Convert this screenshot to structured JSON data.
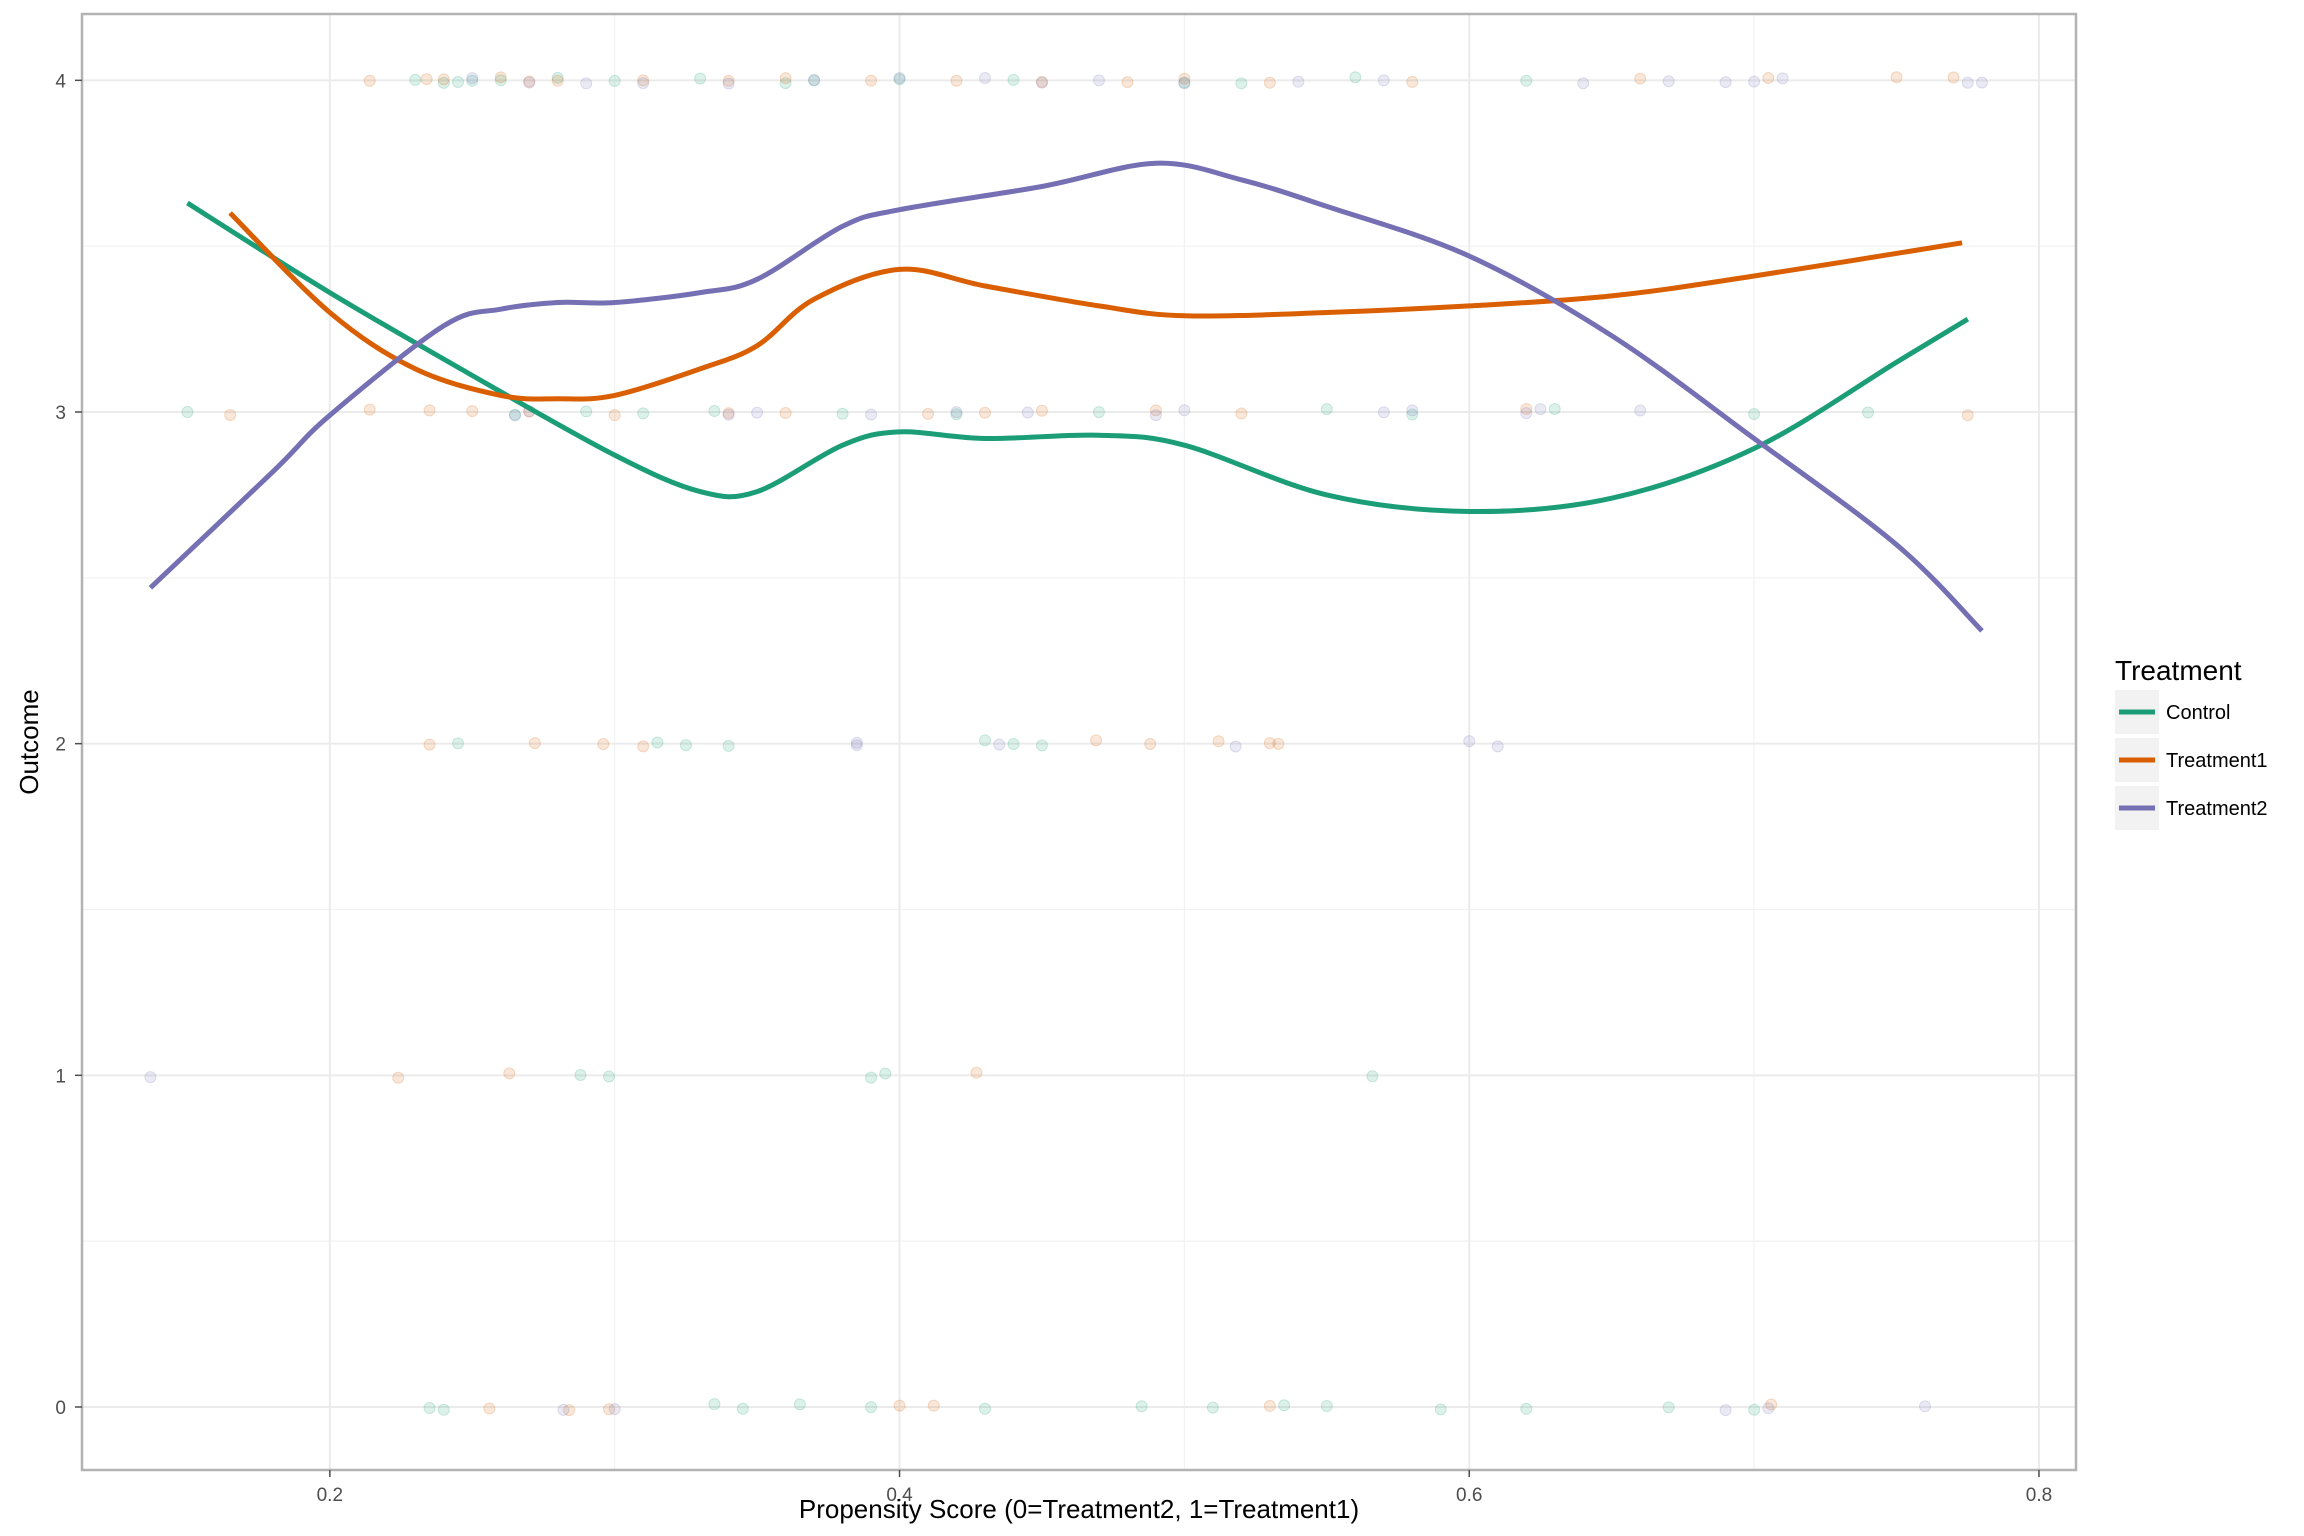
{
  "chart_data": {
    "type": "scatter",
    "xlabel": "Propensity Score (0=Treatment2, 1=Treatment1)",
    "ylabel": "Outcome",
    "xlim": [
      0.113,
      0.813
    ],
    "ylim": [
      -0.19,
      4.2
    ],
    "x_ticks": [
      "0.2",
      "0.4",
      "0.6",
      "0.8"
    ],
    "y_ticks": [
      "0",
      "1",
      "2",
      "3",
      "4"
    ],
    "grid": true,
    "legend": {
      "title": "Treatment",
      "position": "right"
    },
    "series": [
      {
        "name": "Control",
        "color": "#1b9e77",
        "smooth": [
          [
            0.15,
            3.63
          ],
          [
            0.2,
            3.36
          ],
          [
            0.25,
            3.11
          ],
          [
            0.3,
            2.87
          ],
          [
            0.33,
            2.76
          ],
          [
            0.35,
            2.76
          ],
          [
            0.38,
            2.9
          ],
          [
            0.4,
            2.94
          ],
          [
            0.43,
            2.92
          ],
          [
            0.47,
            2.93
          ],
          [
            0.5,
            2.9
          ],
          [
            0.55,
            2.75
          ],
          [
            0.6,
            2.7
          ],
          [
            0.65,
            2.74
          ],
          [
            0.7,
            2.89
          ],
          [
            0.75,
            3.15
          ],
          [
            0.775,
            3.28
          ]
        ],
        "points": [
          [
            0.15,
            3
          ],
          [
            0.23,
            4
          ],
          [
            0.24,
            4
          ],
          [
            0.245,
            4
          ],
          [
            0.25,
            4
          ],
          [
            0.26,
            4
          ],
          [
            0.265,
            3
          ],
          [
            0.28,
            4
          ],
          [
            0.29,
            3
          ],
          [
            0.3,
            4
          ],
          [
            0.31,
            3
          ],
          [
            0.33,
            4
          ],
          [
            0.335,
            3
          ],
          [
            0.36,
            4
          ],
          [
            0.37,
            4
          ],
          [
            0.38,
            3
          ],
          [
            0.4,
            4
          ],
          [
            0.42,
            3
          ],
          [
            0.44,
            4
          ],
          [
            0.47,
            3
          ],
          [
            0.5,
            4
          ],
          [
            0.52,
            4
          ],
          [
            0.55,
            3
          ],
          [
            0.56,
            4
          ],
          [
            0.58,
            3
          ],
          [
            0.62,
            4
          ],
          [
            0.63,
            3
          ],
          [
            0.7,
            3
          ],
          [
            0.74,
            3
          ],
          [
            0.245,
            2
          ],
          [
            0.315,
            2
          ],
          [
            0.325,
            2
          ],
          [
            0.34,
            2
          ],
          [
            0.43,
            2
          ],
          [
            0.44,
            2
          ],
          [
            0.45,
            2
          ],
          [
            0.288,
            1
          ],
          [
            0.298,
            1
          ],
          [
            0.39,
            1
          ],
          [
            0.395,
            1
          ],
          [
            0.566,
            1
          ],
          [
            0.235,
            0
          ],
          [
            0.24,
            0
          ],
          [
            0.335,
            0
          ],
          [
            0.345,
            0
          ],
          [
            0.365,
            0
          ],
          [
            0.39,
            0
          ],
          [
            0.43,
            0
          ],
          [
            0.485,
            0
          ],
          [
            0.51,
            0
          ],
          [
            0.535,
            0
          ],
          [
            0.55,
            0
          ],
          [
            0.59,
            0
          ],
          [
            0.62,
            0
          ],
          [
            0.67,
            0
          ],
          [
            0.7,
            0
          ]
        ]
      },
      {
        "name": "Treatment1",
        "color": "#d95f02",
        "smooth": [
          [
            0.165,
            3.6
          ],
          [
            0.2,
            3.3
          ],
          [
            0.23,
            3.13
          ],
          [
            0.26,
            3.05
          ],
          [
            0.28,
            3.04
          ],
          [
            0.3,
            3.05
          ],
          [
            0.33,
            3.13
          ],
          [
            0.35,
            3.2
          ],
          [
            0.37,
            3.34
          ],
          [
            0.4,
            3.43
          ],
          [
            0.43,
            3.38
          ],
          [
            0.47,
            3.32
          ],
          [
            0.5,
            3.29
          ],
          [
            0.55,
            3.3
          ],
          [
            0.6,
            3.32
          ],
          [
            0.65,
            3.35
          ],
          [
            0.7,
            3.41
          ],
          [
            0.773,
            3.51
          ]
        ],
        "points": [
          [
            0.165,
            3
          ],
          [
            0.214,
            4
          ],
          [
            0.234,
            4
          ],
          [
            0.24,
            4
          ],
          [
            0.26,
            4
          ],
          [
            0.27,
            4
          ],
          [
            0.28,
            4
          ],
          [
            0.31,
            4
          ],
          [
            0.34,
            4
          ],
          [
            0.36,
            4
          ],
          [
            0.39,
            4
          ],
          [
            0.42,
            4
          ],
          [
            0.45,
            4
          ],
          [
            0.48,
            4
          ],
          [
            0.5,
            4
          ],
          [
            0.53,
            4
          ],
          [
            0.58,
            4
          ],
          [
            0.66,
            4
          ],
          [
            0.705,
            4
          ],
          [
            0.75,
            4
          ],
          [
            0.77,
            4
          ],
          [
            0.214,
            3
          ],
          [
            0.235,
            3
          ],
          [
            0.25,
            3
          ],
          [
            0.27,
            3
          ],
          [
            0.3,
            3
          ],
          [
            0.34,
            3
          ],
          [
            0.36,
            3
          ],
          [
            0.41,
            3
          ],
          [
            0.43,
            3
          ],
          [
            0.45,
            3
          ],
          [
            0.49,
            3
          ],
          [
            0.52,
            3
          ],
          [
            0.62,
            3
          ],
          [
            0.775,
            3
          ],
          [
            0.235,
            2
          ],
          [
            0.272,
            2
          ],
          [
            0.296,
            2
          ],
          [
            0.31,
            2
          ],
          [
            0.469,
            2
          ],
          [
            0.488,
            2
          ],
          [
            0.512,
            2
          ],
          [
            0.53,
            2
          ],
          [
            0.533,
            2
          ],
          [
            0.224,
            1
          ],
          [
            0.263,
            1
          ],
          [
            0.427,
            1
          ],
          [
            0.256,
            0
          ],
          [
            0.284,
            0
          ],
          [
            0.298,
            0
          ],
          [
            0.4,
            0
          ],
          [
            0.412,
            0
          ],
          [
            0.53,
            0
          ],
          [
            0.706,
            0
          ]
        ]
      },
      {
        "name": "Treatment2",
        "color": "#7570b3",
        "smooth": [
          [
            0.137,
            2.47
          ],
          [
            0.18,
            2.82
          ],
          [
            0.2,
            2.99
          ],
          [
            0.24,
            3.26
          ],
          [
            0.26,
            3.31
          ],
          [
            0.28,
            3.33
          ],
          [
            0.3,
            3.33
          ],
          [
            0.33,
            3.36
          ],
          [
            0.35,
            3.4
          ],
          [
            0.38,
            3.56
          ],
          [
            0.4,
            3.61
          ],
          [
            0.45,
            3.68
          ],
          [
            0.49,
            3.75
          ],
          [
            0.52,
            3.7
          ],
          [
            0.55,
            3.62
          ],
          [
            0.6,
            3.47
          ],
          [
            0.65,
            3.23
          ],
          [
            0.7,
            2.92
          ],
          [
            0.75,
            2.6
          ],
          [
            0.78,
            2.34
          ]
        ],
        "points": [
          [
            0.137,
            1
          ],
          [
            0.25,
            4
          ],
          [
            0.27,
            4
          ],
          [
            0.29,
            4
          ],
          [
            0.31,
            4
          ],
          [
            0.34,
            4
          ],
          [
            0.37,
            4
          ],
          [
            0.4,
            4
          ],
          [
            0.43,
            4
          ],
          [
            0.45,
            4
          ],
          [
            0.47,
            4
          ],
          [
            0.5,
            4
          ],
          [
            0.54,
            4
          ],
          [
            0.57,
            4
          ],
          [
            0.64,
            4
          ],
          [
            0.67,
            4
          ],
          [
            0.69,
            4
          ],
          [
            0.7,
            4
          ],
          [
            0.71,
            4
          ],
          [
            0.775,
            4
          ],
          [
            0.78,
            4
          ],
          [
            0.265,
            3
          ],
          [
            0.27,
            3
          ],
          [
            0.34,
            3
          ],
          [
            0.35,
            3
          ],
          [
            0.39,
            3
          ],
          [
            0.42,
            3
          ],
          [
            0.445,
            3
          ],
          [
            0.49,
            3
          ],
          [
            0.5,
            3
          ],
          [
            0.57,
            3
          ],
          [
            0.58,
            3
          ],
          [
            0.62,
            3
          ],
          [
            0.625,
            3
          ],
          [
            0.66,
            3
          ],
          [
            0.385,
            2
          ],
          [
            0.385,
            2
          ],
          [
            0.435,
            2
          ],
          [
            0.518,
            2
          ],
          [
            0.6,
            2
          ],
          [
            0.61,
            2
          ],
          [
            0.282,
            0
          ],
          [
            0.3,
            0
          ],
          [
            0.705,
            0
          ],
          [
            0.69,
            0
          ],
          [
            0.76,
            0
          ]
        ]
      }
    ]
  }
}
